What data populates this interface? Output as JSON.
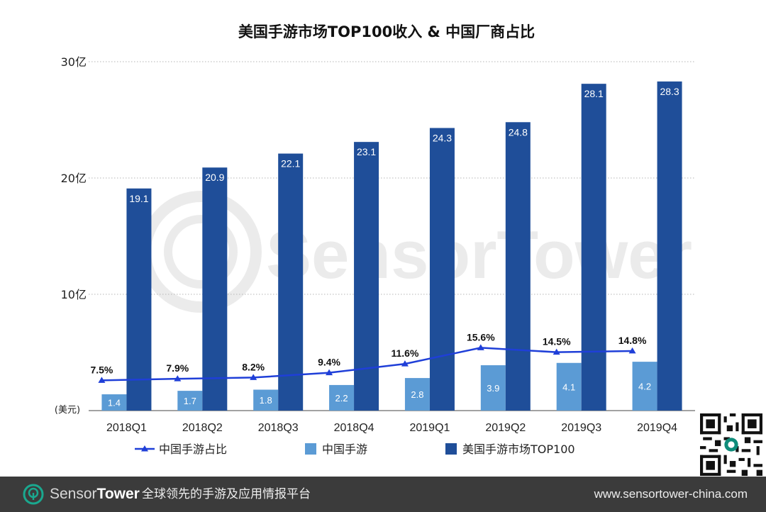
{
  "chart_data": {
    "type": "bar",
    "title": "美国手游市场TOP100收入 & 中国厂商占比",
    "unit_label": "(美元)",
    "y_ticks": [
      "30亿",
      "20亿",
      "10亿"
    ],
    "ylim": [
      0,
      30
    ],
    "grid": true,
    "legend_position": "bottom",
    "categories": [
      "2018Q1",
      "2018Q2",
      "2018Q3",
      "2018Q4",
      "2019Q1",
      "2019Q2",
      "2019Q3",
      "2019Q4"
    ],
    "series": [
      {
        "name": "中国手游",
        "type": "bar",
        "color": "#5b9bd5",
        "values": [
          1.4,
          1.7,
          1.8,
          2.2,
          2.8,
          3.9,
          4.1,
          4.2
        ],
        "labels": [
          "1.4",
          "1.7",
          "1.8",
          "2.2",
          "2.8",
          "3.9",
          "4.1",
          "4.2"
        ]
      },
      {
        "name": "美国手游市场TOP100",
        "type": "bar",
        "color": "#1f4e99",
        "values": [
          19.1,
          20.9,
          22.1,
          23.1,
          24.3,
          24.8,
          28.1,
          28.3
        ],
        "labels": [
          "19.1",
          "20.9",
          "22.1",
          "23.1",
          "24.3",
          "24.8",
          "28.1",
          "28.3"
        ]
      },
      {
        "name": "中国手游占比",
        "type": "line",
        "color": "#1f3fd8",
        "values": [
          7.5,
          7.9,
          8.2,
          9.4,
          11.6,
          15.6,
          14.5,
          14.8
        ],
        "labels": [
          "7.5%",
          "7.9%",
          "8.2%",
          "9.4%",
          "11.6%",
          "15.6%",
          "14.5%",
          "14.8%"
        ]
      }
    ]
  },
  "legend": [
    {
      "label": "中国手游占比",
      "kind": "line",
      "color": "#1f3fd8"
    },
    {
      "label": "中国手游",
      "kind": "bar",
      "color": "#5b9bd5"
    },
    {
      "label": "美国手游市场TOP100",
      "kind": "bar",
      "color": "#1f4e99"
    }
  ],
  "watermark": "SensorTower",
  "footer": {
    "brand_part1": "Sensor",
    "brand_part2": "Tower",
    "tagline": "全球领先的手游及应用情报平台",
    "url": "www.sensortower-china.com"
  },
  "colors": {
    "footer_bg": "#3b3b3b",
    "accent": "#0f8c7a"
  }
}
